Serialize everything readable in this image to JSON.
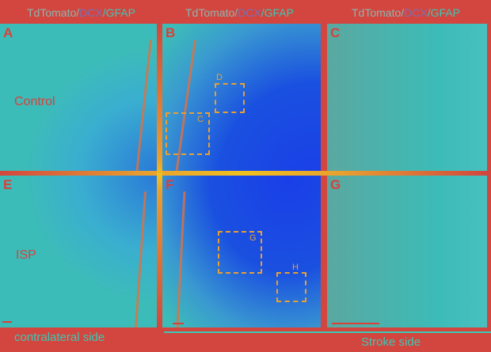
{
  "headers": [
    {
      "a": "TdTomato/",
      "b": "DCX",
      "c": "/GFAP"
    },
    {
      "a": "TdTomato/",
      "b": "DCX",
      "c": "/GFAP"
    },
    {
      "a": "TdTomato/",
      "b": "DCX",
      "c": "/GFAP"
    }
  ],
  "panels": {
    "A": "A",
    "B": "B",
    "C": "C",
    "E": "E",
    "F": "F",
    "G": "G"
  },
  "conditions": {
    "control": "Control",
    "isp": "ISP"
  },
  "boxes": {
    "D": "D",
    "C": "C",
    "G": "G",
    "H": "H"
  },
  "footer": {
    "left": "contralateral side",
    "right": "Stroke side"
  },
  "colors": {
    "background": "#d2463f",
    "tissue": "#3cbcb8",
    "lesion": "#1a4ee0",
    "highlight": "#f0c020"
  }
}
